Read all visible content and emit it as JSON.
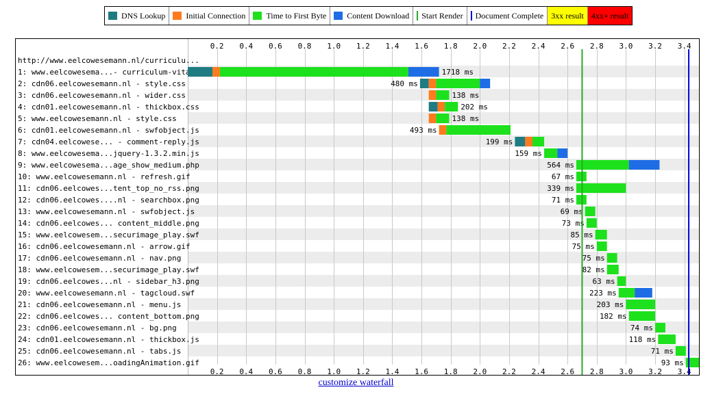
{
  "legend": [
    {
      "label": "DNS Lookup",
      "color": "#1f7c83",
      "kind": "box"
    },
    {
      "label": "Initial Connection",
      "color": "#fd7b1c",
      "kind": "box"
    },
    {
      "label": "Time to First Byte",
      "color": "#1de11d",
      "kind": "box"
    },
    {
      "label": "Content Download",
      "color": "#1e6de5",
      "kind": "box"
    },
    {
      "label": "Start Render",
      "color": "#28a828",
      "kind": "line"
    },
    {
      "label": "Document Complete",
      "color": "#0000d8",
      "kind": "line"
    },
    {
      "label": "3xx result",
      "color": "#ffff00",
      "kind": "bg"
    },
    {
      "label": "4xx+ result",
      "color": "#ff0000",
      "kind": "bg"
    }
  ],
  "chart_data": {
    "type": "bar",
    "xlim": [
      0,
      3.5
    ],
    "ticks": [
      "0.2",
      "0.4",
      "0.6",
      "0.8",
      "1.0",
      "1.2",
      "1.4",
      "1.6",
      "1.8",
      "2.0",
      "2.2",
      "2.4",
      "2.6",
      "2.8",
      "3.0",
      "3.2",
      "3.4"
    ],
    "start_render": 2.7,
    "document_complete": 3.43,
    "page_url": "http://www.eelcowesemann.nl/curriculu...",
    "requests": [
      {
        "label": "1: www.eelcowesema...- curriculum-vitae/",
        "time": "1718 ms",
        "segments": [
          {
            "t": "dns",
            "s": 0,
            "e": 0.17
          },
          {
            "t": "conn",
            "s": 0.17,
            "e": 0.22
          },
          {
            "t": "ttfb",
            "s": 0.22,
            "e": 1.51
          },
          {
            "t": "dl",
            "s": 1.51,
            "e": 1.72
          }
        ],
        "label_side": "right"
      },
      {
        "label": "2: cdn06.eelcowesemann.nl - style.css",
        "time": "480 ms",
        "segments": [
          {
            "t": "dns",
            "s": 1.59,
            "e": 1.65
          },
          {
            "t": "conn",
            "s": 1.65,
            "e": 1.7
          },
          {
            "t": "ttfb",
            "s": 1.7,
            "e": 2.0
          },
          {
            "t": "dl",
            "s": 2.0,
            "e": 2.07
          }
        ],
        "label_side": "left"
      },
      {
        "label": "3: cdn06.eelcowesemann.nl - wider.css",
        "time": "138 ms",
        "segments": [
          {
            "t": "conn",
            "s": 1.65,
            "e": 1.7
          },
          {
            "t": "ttfb",
            "s": 1.7,
            "e": 1.79
          }
        ],
        "label_side": "right"
      },
      {
        "label": "4: cdn01.eelcowesemann.nl - thickbox.css",
        "time": "202 ms",
        "segments": [
          {
            "t": "dns",
            "s": 1.65,
            "e": 1.71
          },
          {
            "t": "conn",
            "s": 1.71,
            "e": 1.76
          },
          {
            "t": "ttfb",
            "s": 1.76,
            "e": 1.85
          }
        ],
        "label_side": "right"
      },
      {
        "label": "5: www.eelcowesemann.nl - style.css",
        "time": "138 ms",
        "segments": [
          {
            "t": "conn",
            "s": 1.65,
            "e": 1.7
          },
          {
            "t": "ttfb",
            "s": 1.7,
            "e": 1.79
          }
        ],
        "label_side": "right"
      },
      {
        "label": "6: cdn01.eelcowesemann.nl - swfobject.js",
        "time": "493 ms",
        "segments": [
          {
            "t": "conn",
            "s": 1.72,
            "e": 1.77
          },
          {
            "t": "ttfb",
            "s": 1.77,
            "e": 2.21
          }
        ],
        "label_side": "left"
      },
      {
        "label": "7: cdn04.eelcowese... - comment-reply.js",
        "time": "199 ms",
        "segments": [
          {
            "t": "dns",
            "s": 2.24,
            "e": 2.31
          },
          {
            "t": "conn",
            "s": 2.31,
            "e": 2.36
          },
          {
            "t": "ttfb",
            "s": 2.36,
            "e": 2.44
          }
        ],
        "label_side": "left"
      },
      {
        "label": "8: www.eelcowesema...jquery-1.3.2.min.js",
        "time": "159 ms",
        "segments": [
          {
            "t": "ttfb",
            "s": 2.44,
            "e": 2.53
          },
          {
            "t": "dl",
            "s": 2.53,
            "e": 2.6
          }
        ],
        "label_side": "left"
      },
      {
        "label": "9: www.eelcowesema...age_show_medium.php",
        "time": "564 ms",
        "segments": [
          {
            "t": "ttfb",
            "s": 2.66,
            "e": 3.02
          },
          {
            "t": "dl",
            "s": 3.02,
            "e": 3.23
          }
        ],
        "label_side": "left"
      },
      {
        "label": "10: www.eelcowesemann.nl - refresh.gif",
        "time": "67 ms",
        "segments": [
          {
            "t": "ttfb",
            "s": 2.66,
            "e": 2.73
          }
        ],
        "label_side": "left"
      },
      {
        "label": "11: cdn06.eelcowes...tent_top_no_rss.png",
        "time": "339 ms",
        "segments": [
          {
            "t": "ttfb",
            "s": 2.66,
            "e": 3.0
          }
        ],
        "label_side": "left"
      },
      {
        "label": "12: cdn06.eelcowes....nl - searchbox.png",
        "time": "71 ms",
        "segments": [
          {
            "t": "ttfb",
            "s": 2.66,
            "e": 2.73
          }
        ],
        "label_side": "left"
      },
      {
        "label": "13: www.eelcowesemann.nl - swfobject.js",
        "time": "69 ms",
        "segments": [
          {
            "t": "ttfb",
            "s": 2.72,
            "e": 2.79
          }
        ],
        "label_side": "left"
      },
      {
        "label": "14: cdn06.eelcowes... content_middle.png",
        "time": "73 ms",
        "segments": [
          {
            "t": "ttfb",
            "s": 2.73,
            "e": 2.8
          }
        ],
        "label_side": "left"
      },
      {
        "label": "15: www.eelcowesem...securimage_play.swf",
        "time": "85 ms",
        "segments": [
          {
            "t": "ttfb",
            "s": 2.79,
            "e": 2.87
          }
        ],
        "label_side": "left"
      },
      {
        "label": "16: cdn06.eelcowesemann.nl - arrow.gif",
        "time": "75 ms",
        "segments": [
          {
            "t": "ttfb",
            "s": 2.8,
            "e": 2.87
          }
        ],
        "label_side": "left"
      },
      {
        "label": "17: cdn06.eelcowesemann.nl - nav.png",
        "time": "75 ms",
        "segments": [
          {
            "t": "ttfb",
            "s": 2.87,
            "e": 2.94
          }
        ],
        "label_side": "left"
      },
      {
        "label": "18: www.eelcowesem...securimage_play.swf",
        "time": "82 ms",
        "segments": [
          {
            "t": "ttfb",
            "s": 2.87,
            "e": 2.95
          }
        ],
        "label_side": "left"
      },
      {
        "label": "19: cdn06.eelcowes...nl - sidebar_h3.png",
        "time": "63 ms",
        "segments": [
          {
            "t": "ttfb",
            "s": 2.94,
            "e": 3.0
          }
        ],
        "label_side": "left"
      },
      {
        "label": "20: www.eelcowesemann.nl - tagcloud.swf",
        "time": "223 ms",
        "segments": [
          {
            "t": "ttfb",
            "s": 2.95,
            "e": 3.06
          },
          {
            "t": "dl",
            "s": 3.06,
            "e": 3.18
          }
        ],
        "label_side": "left"
      },
      {
        "label": "21: cdn06.eelcowesemann.nl - menu.js",
        "time": "203 ms",
        "segments": [
          {
            "t": "ttfb",
            "s": 3.0,
            "e": 3.2
          }
        ],
        "label_side": "left"
      },
      {
        "label": "22: cdn06.eelcowes... content_bottom.png",
        "time": "182 ms",
        "segments": [
          {
            "t": "ttfb",
            "s": 3.02,
            "e": 3.2
          }
        ],
        "label_side": "left"
      },
      {
        "label": "23: cdn06.eelcowesemann.nl - bg.png",
        "time": "74 ms",
        "segments": [
          {
            "t": "ttfb",
            "s": 3.2,
            "e": 3.27
          }
        ],
        "label_side": "left"
      },
      {
        "label": "24: cdn01.eelcowesemann.nl - thickbox.js",
        "time": "118 ms",
        "segments": [
          {
            "t": "ttfb",
            "s": 3.22,
            "e": 3.34
          }
        ],
        "label_side": "left"
      },
      {
        "label": "25: cdn06.eelcowesemann.nl - tabs.js",
        "time": "71 ms",
        "segments": [
          {
            "t": "ttfb",
            "s": 3.34,
            "e": 3.41
          }
        ],
        "label_side": "left"
      },
      {
        "label": "26: www.eelcowesem...oadingAnimation.gif",
        "time": "93 ms",
        "segments": [
          {
            "t": "ttfb",
            "s": 3.41,
            "e": 3.5
          }
        ],
        "label_side": "left"
      }
    ]
  },
  "footer": {
    "customize_label": "customize waterfall"
  }
}
